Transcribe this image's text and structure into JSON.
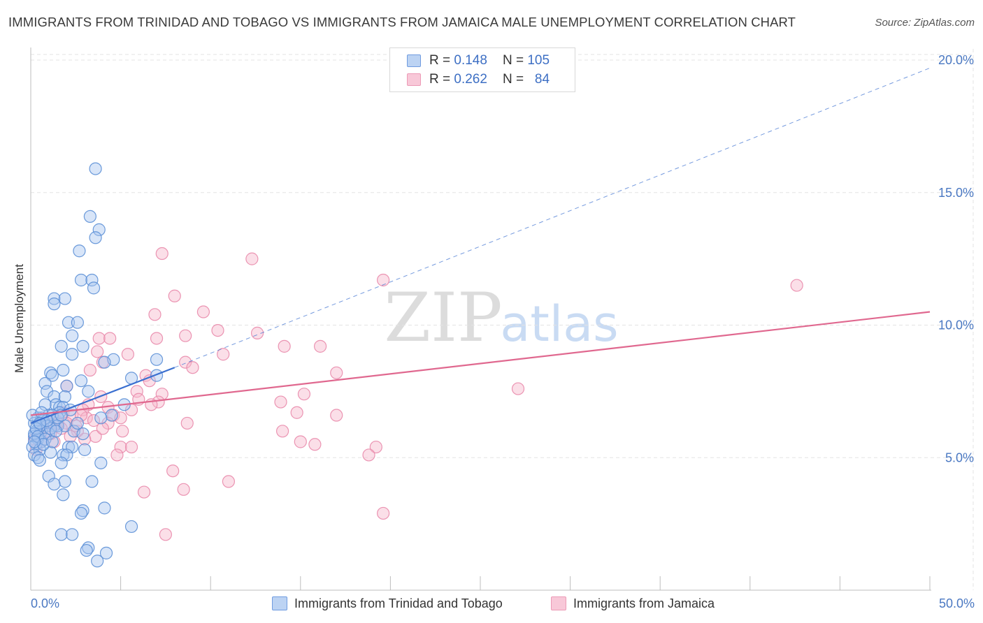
{
  "header": {
    "title": "IMMIGRANTS FROM TRINIDAD AND TOBAGO VS IMMIGRANTS FROM JAMAICA MALE UNEMPLOYMENT CORRELATION CHART",
    "source": "Source: ZipAtlas.com"
  },
  "watermark": {
    "zip": "ZIP",
    "atlas": "atlas"
  },
  "legend": {
    "rows": [
      {
        "r_label": "R =",
        "r_value": "0.148",
        "n_label": "N =",
        "n_value": "105"
      },
      {
        "r_label": "R =",
        "r_value": "0.262",
        "n_label": "N =",
        "n_value": "84"
      }
    ]
  },
  "bottom_legend": {
    "series1": "Immigrants from Trinidad and Tobago",
    "series2": "Immigrants from Jamaica"
  },
  "colors": {
    "blue_fill": "#a9c6f0",
    "blue_stroke": "#5b8fd6",
    "blue_line": "#3a6fd0",
    "pink_fill": "#f6b9cd",
    "pink_stroke": "#e98aab",
    "pink_line": "#e0688f",
    "grid": "#e3e3e3",
    "tick_text": "#4a78c2"
  },
  "chart_data": {
    "type": "scatter",
    "title": "IMMIGRANTS FROM TRINIDAD AND TOBAGO VS IMMIGRANTS FROM JAMAICA MALE UNEMPLOYMENT CORRELATION CHART",
    "xlabel": "",
    "ylabel": "Male Unemployment",
    "xlim": [
      0,
      50
    ],
    "ylim": [
      0,
      20
    ],
    "x_tick_labels": [
      "0.0%",
      "50.0%"
    ],
    "y_tick_values": [
      5,
      10,
      15,
      20
    ],
    "y_tick_labels": [
      "5.0%",
      "10.0%",
      "15.0%",
      "20.0%"
    ],
    "grid": true,
    "legend_position": "top-center",
    "series": [
      {
        "name": "Immigrants from Trinidad and Tobago",
        "color": "#5b8fd6",
        "trend": {
          "x": [
            0,
            8
          ],
          "y": [
            6.3,
            8.4
          ],
          "extended_dashed_to": [
            50,
            19.7
          ]
        },
        "points": [
          [
            3.6,
            15.9
          ],
          [
            3.3,
            14.1
          ],
          [
            3.8,
            13.6
          ],
          [
            3.6,
            13.3
          ],
          [
            2.7,
            12.8
          ],
          [
            2.8,
            11.7
          ],
          [
            3.4,
            11.7
          ],
          [
            3.5,
            11.4
          ],
          [
            1.3,
            11.0
          ],
          [
            1.9,
            11.0
          ],
          [
            1.3,
            10.8
          ],
          [
            2.1,
            10.1
          ],
          [
            2.6,
            10.1
          ],
          [
            2.3,
            9.6
          ],
          [
            1.7,
            9.2
          ],
          [
            2.9,
            9.2
          ],
          [
            2.3,
            8.9
          ],
          [
            4.6,
            8.7
          ],
          [
            7.0,
            8.7
          ],
          [
            4.1,
            8.6
          ],
          [
            1.8,
            8.3
          ],
          [
            1.1,
            8.2
          ],
          [
            1.2,
            8.1
          ],
          [
            5.6,
            8.0
          ],
          [
            7.0,
            8.1
          ],
          [
            0.8,
            7.8
          ],
          [
            2.8,
            7.9
          ],
          [
            2.0,
            7.7
          ],
          [
            0.9,
            7.5
          ],
          [
            3.2,
            7.5
          ],
          [
            1.3,
            7.3
          ],
          [
            1.9,
            7.3
          ],
          [
            1.4,
            7.0
          ],
          [
            0.8,
            7.0
          ],
          [
            1.6,
            6.9
          ],
          [
            1.8,
            6.9
          ],
          [
            5.2,
            7.0
          ],
          [
            1.6,
            6.7
          ],
          [
            1.0,
            6.6
          ],
          [
            0.6,
            6.5
          ],
          [
            1.2,
            6.6
          ],
          [
            4.5,
            6.6
          ],
          [
            0.4,
            6.5
          ],
          [
            0.7,
            6.4
          ],
          [
            3.9,
            6.5
          ],
          [
            0.2,
            6.3
          ],
          [
            0.5,
            6.2
          ],
          [
            0.9,
            6.2
          ],
          [
            1.3,
            6.2
          ],
          [
            1.5,
            6.2
          ],
          [
            1.9,
            6.2
          ],
          [
            0.3,
            6.0
          ],
          [
            0.6,
            6.0
          ],
          [
            1.0,
            5.9
          ],
          [
            2.4,
            6.0
          ],
          [
            2.9,
            5.9
          ],
          [
            0.2,
            5.8
          ],
          [
            0.4,
            5.7
          ],
          [
            0.6,
            5.6
          ],
          [
            0.3,
            5.5
          ],
          [
            0.1,
            5.4
          ],
          [
            0.5,
            5.3
          ],
          [
            2.1,
            5.4
          ],
          [
            2.3,
            5.4
          ],
          [
            1.1,
            5.2
          ],
          [
            3.0,
            5.3
          ],
          [
            0.2,
            5.1
          ],
          [
            0.4,
            5.0
          ],
          [
            1.8,
            5.1
          ],
          [
            2.0,
            5.1
          ],
          [
            0.5,
            4.9
          ],
          [
            1.7,
            4.8
          ],
          [
            3.9,
            4.8
          ],
          [
            1.0,
            4.3
          ],
          [
            1.9,
            4.1
          ],
          [
            3.4,
            4.1
          ],
          [
            1.3,
            4.0
          ],
          [
            1.8,
            3.6
          ],
          [
            4.1,
            3.1
          ],
          [
            2.9,
            3.0
          ],
          [
            2.8,
            2.9
          ],
          [
            5.6,
            2.4
          ],
          [
            1.7,
            2.1
          ],
          [
            2.3,
            2.1
          ],
          [
            3.2,
            1.6
          ],
          [
            3.1,
            1.5
          ],
          [
            4.2,
            1.4
          ],
          [
            3.7,
            1.1
          ],
          [
            0.1,
            6.6
          ],
          [
            0.2,
            5.9
          ],
          [
            0.3,
            6.1
          ],
          [
            0.4,
            5.8
          ],
          [
            0.8,
            5.7
          ],
          [
            1.1,
            6.1
          ],
          [
            1.5,
            6.5
          ],
          [
            0.7,
            5.5
          ],
          [
            0.9,
            6.4
          ],
          [
            2.2,
            6.8
          ],
          [
            1.2,
            5.6
          ],
          [
            0.6,
            6.7
          ],
          [
            1.4,
            6.0
          ],
          [
            2.6,
            6.3
          ],
          [
            0.2,
            5.6
          ],
          [
            0.5,
            6.3
          ],
          [
            1.7,
            6.6
          ]
        ]
      },
      {
        "name": "Immigrants from Jamaica",
        "color": "#e98aab",
        "trend": {
          "x": [
            0,
            50
          ],
          "y": [
            6.6,
            10.5
          ]
        },
        "points": [
          [
            7.3,
            12.7
          ],
          [
            12.3,
            12.5
          ],
          [
            19.6,
            11.7
          ],
          [
            42.6,
            11.5
          ],
          [
            8.0,
            11.1
          ],
          [
            9.6,
            10.5
          ],
          [
            6.9,
            10.4
          ],
          [
            10.4,
            9.8
          ],
          [
            12.6,
            9.7
          ],
          [
            8.6,
            9.6
          ],
          [
            3.8,
            9.5
          ],
          [
            4.4,
            9.5
          ],
          [
            7.0,
            9.5
          ],
          [
            14.1,
            9.2
          ],
          [
            16.1,
            9.2
          ],
          [
            3.7,
            9.0
          ],
          [
            10.7,
            8.9
          ],
          [
            5.4,
            8.9
          ],
          [
            4.0,
            8.6
          ],
          [
            8.6,
            8.6
          ],
          [
            9.0,
            8.4
          ],
          [
            3.3,
            8.3
          ],
          [
            17.0,
            8.2
          ],
          [
            6.4,
            8.1
          ],
          [
            6.6,
            7.9
          ],
          [
            2.0,
            7.7
          ],
          [
            27.1,
            7.6
          ],
          [
            5.9,
            7.5
          ],
          [
            7.3,
            7.4
          ],
          [
            3.9,
            7.3
          ],
          [
            15.2,
            7.4
          ],
          [
            6.0,
            7.2
          ],
          [
            7.1,
            7.1
          ],
          [
            13.9,
            7.1
          ],
          [
            6.7,
            7.0
          ],
          [
            3.2,
            7.0
          ],
          [
            2.9,
            6.8
          ],
          [
            4.3,
            6.9
          ],
          [
            5.6,
            6.8
          ],
          [
            1.8,
            6.7
          ],
          [
            14.8,
            6.7
          ],
          [
            17.0,
            6.6
          ],
          [
            2.3,
            6.6
          ],
          [
            4.6,
            6.6
          ],
          [
            3.1,
            6.5
          ],
          [
            5.0,
            6.5
          ],
          [
            1.4,
            6.4
          ],
          [
            3.5,
            6.4
          ],
          [
            2.0,
            6.3
          ],
          [
            4.3,
            6.3
          ],
          [
            8.7,
            6.3
          ],
          [
            1.0,
            6.2
          ],
          [
            1.7,
            6.1
          ],
          [
            2.6,
            6.0
          ],
          [
            0.9,
            6.0
          ],
          [
            5.1,
            6.0
          ],
          [
            14.0,
            6.0
          ],
          [
            2.2,
            5.8
          ],
          [
            3.6,
            5.8
          ],
          [
            1.3,
            5.6
          ],
          [
            15.0,
            5.6
          ],
          [
            15.8,
            5.5
          ],
          [
            0.6,
            5.6
          ],
          [
            5.0,
            5.4
          ],
          [
            5.6,
            5.4
          ],
          [
            19.2,
            5.4
          ],
          [
            18.8,
            5.1
          ],
          [
            4.8,
            5.1
          ],
          [
            0.3,
            5.3
          ],
          [
            7.9,
            4.5
          ],
          [
            11.0,
            4.1
          ],
          [
            6.3,
            3.7
          ],
          [
            8.5,
            3.8
          ],
          [
            19.6,
            2.9
          ],
          [
            7.5,
            2.1
          ],
          [
            0.4,
            5.8
          ],
          [
            0.7,
            6.1
          ],
          [
            1.1,
            5.9
          ],
          [
            2.5,
            6.2
          ],
          [
            4.0,
            6.1
          ],
          [
            0.2,
            5.7
          ],
          [
            3.0,
            5.7
          ],
          [
            1.5,
            6.3
          ],
          [
            2.8,
            6.6
          ]
        ]
      }
    ]
  }
}
